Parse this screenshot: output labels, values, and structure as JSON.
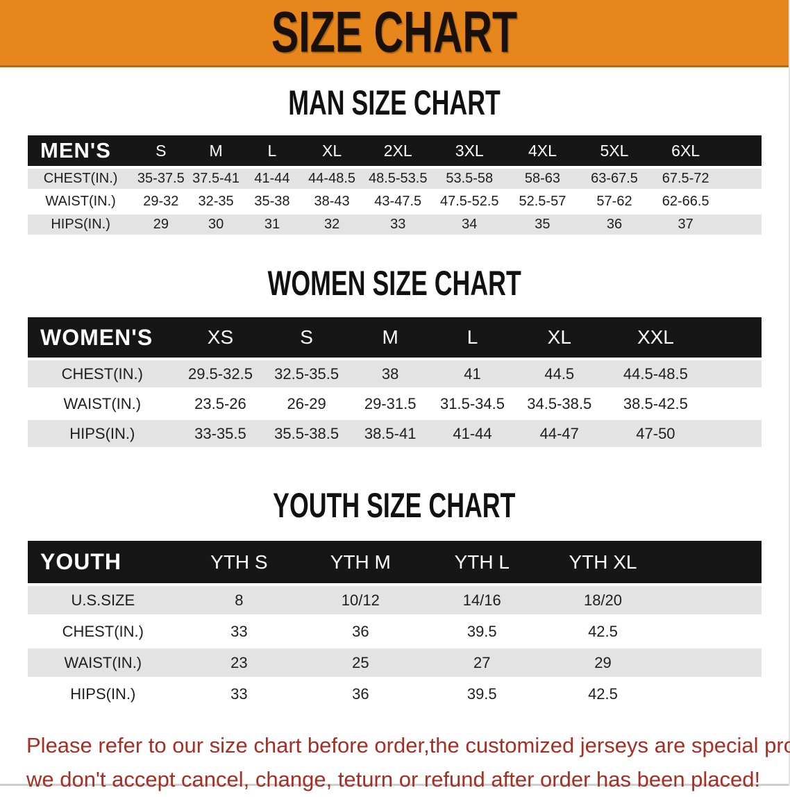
{
  "banner": {
    "title": "SIZE CHART",
    "bg_color": "#E7861B",
    "text_color": "#191009"
  },
  "colors": {
    "table_header_bg": "#161616",
    "table_header_text": "#FFFFFF",
    "row_alt_bg": "#E3E3E3",
    "disclaimer_text": "#A82E24"
  },
  "sections": [
    {
      "heading": "MAN SIZE CHART",
      "table": {
        "label": "MEN'S",
        "columns": [
          "S",
          "M",
          "L",
          "XL",
          "2XL",
          "3XL",
          "4XL",
          "5XL",
          "6XL"
        ],
        "rows": [
          {
            "label": "CHEST(IN.)",
            "values": [
              "35-37.5",
              "37.5-41",
              "41-44",
              "44-48.5",
              "48.5-53.5",
              "53.5-58",
              "58-63",
              "63-67.5",
              "67.5-72"
            ]
          },
          {
            "label": "WAIST(IN.)",
            "values": [
              "29-32",
              "32-35",
              "35-38",
              "38-43",
              "43-47.5",
              "47.5-52.5",
              "52.5-57",
              "57-62",
              "62-66.5"
            ]
          },
          {
            "label": "HIPS(IN.)",
            "values": [
              "29",
              "30",
              "31",
              "32",
              "33",
              "34",
              "35",
              "36",
              "37"
            ]
          }
        ]
      }
    },
    {
      "heading": "WOMEN SIZE CHART",
      "table": {
        "label": "WOMEN'S",
        "columns": [
          "XS",
          "S",
          "M",
          "L",
          "XL",
          "XXL"
        ],
        "rows": [
          {
            "label": "CHEST(IN.)",
            "values": [
              "29.5-32.5",
              "32.5-35.5",
              "38",
              "41",
              "44.5",
              "44.5-48.5"
            ]
          },
          {
            "label": "WAIST(IN.)",
            "values": [
              "23.5-26",
              "26-29",
              "29-31.5",
              "31.5-34.5",
              "34.5-38.5",
              "38.5-42.5"
            ]
          },
          {
            "label": "HIPS(IN.)",
            "values": [
              "33-35.5",
              "35.5-38.5",
              "38.5-41",
              "41-44",
              "44-47",
              "47-50"
            ]
          }
        ]
      }
    },
    {
      "heading": "YOUTH SIZE CHART",
      "table": {
        "label": "YOUTH",
        "columns": [
          "YTH S",
          "YTH M",
          "YTH L",
          "YTH XL"
        ],
        "rows": [
          {
            "label": "U.S.SIZE",
            "values": [
              "8",
              "10/12",
              "14/16",
              "18/20"
            ]
          },
          {
            "label": "CHEST(IN.)",
            "values": [
              "33",
              "36",
              "39.5",
              "42.5"
            ]
          },
          {
            "label": "WAIST(IN.)",
            "values": [
              "23",
              "25",
              "27",
              "29"
            ]
          },
          {
            "label": "HIPS(IN.)",
            "values": [
              "33",
              "36",
              "39.5",
              "42.5"
            ]
          }
        ]
      }
    }
  ],
  "disclaimer": {
    "lines": [
      "Please refer to our size chart before order,the customized jerseys are special products,",
      "we don't accept cancel, change, teturn or refund after order has been placed!"
    ]
  }
}
